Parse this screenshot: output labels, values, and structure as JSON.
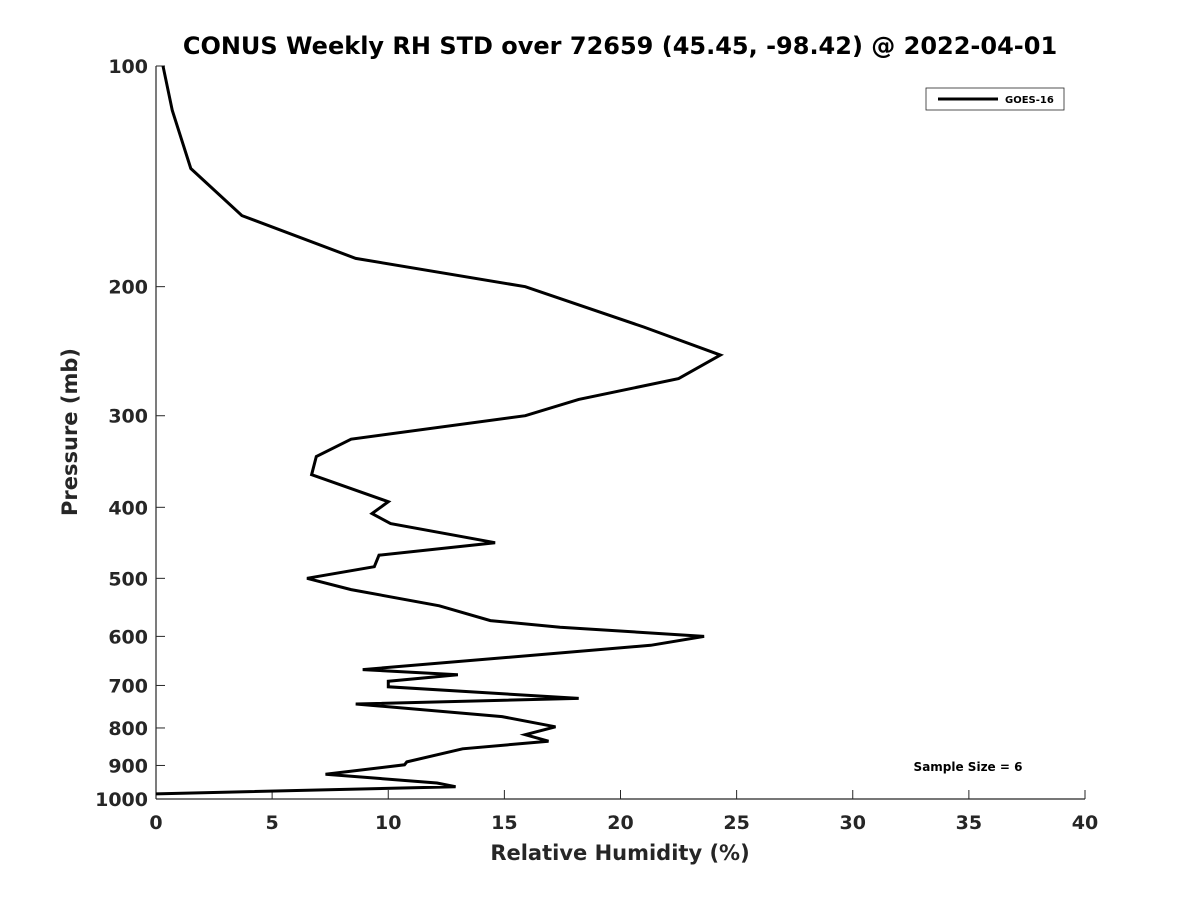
{
  "chart_data": {
    "type": "line",
    "title": "CONUS Weekly RH STD over 72659 (45.45, -98.42) @ 2022-04-01",
    "xlabel": "Relative Humidity (%)",
    "ylabel": "Pressure (mb)",
    "xlim": [
      0,
      40
    ],
    "ylim": [
      100,
      1000
    ],
    "yscale": "log",
    "yreversed": true,
    "xticks": [
      0,
      5,
      10,
      15,
      20,
      25,
      30,
      35,
      40
    ],
    "yticks": [
      100,
      200,
      300,
      400,
      500,
      600,
      700,
      800,
      900,
      1000
    ],
    "legend": {
      "position": "top-right",
      "entries": [
        "GOES-16"
      ]
    },
    "annotation": "Sample Size = 6",
    "line_color": "#000000",
    "series": [
      {
        "name": "GOES-16",
        "rh": [
          0.3,
          0.7,
          1.5,
          3.7,
          8.6,
          15.9,
          21.0,
          24.3,
          22.5,
          18.2,
          15.9,
          8.4,
          6.9,
          6.7,
          10.0,
          9.3,
          10.1,
          14.6,
          9.6,
          9.4,
          6.5,
          8.4,
          12.2,
          14.4,
          17.4,
          23.6,
          21.3,
          8.9,
          13.0,
          10.0,
          10.0,
          18.2,
          8.6,
          14.9,
          17.2,
          15.9,
          16.9,
          13.2,
          10.8,
          10.7,
          7.3,
          12.1,
          12.9,
          0.0
        ],
        "pressure": [
          100,
          115,
          138,
          160,
          183,
          200,
          227,
          248,
          267,
          285,
          300,
          323,
          341,
          361,
          393,
          408,
          421,
          447,
          465,
          482,
          500,
          518,
          545,
          571,
          583,
          600,
          617,
          666,
          677,
          691,
          703,
          729,
          742,
          772,
          797,
          817,
          834,
          854,
          890,
          898,
          925,
          951,
          962,
          984
        ]
      }
    ]
  }
}
